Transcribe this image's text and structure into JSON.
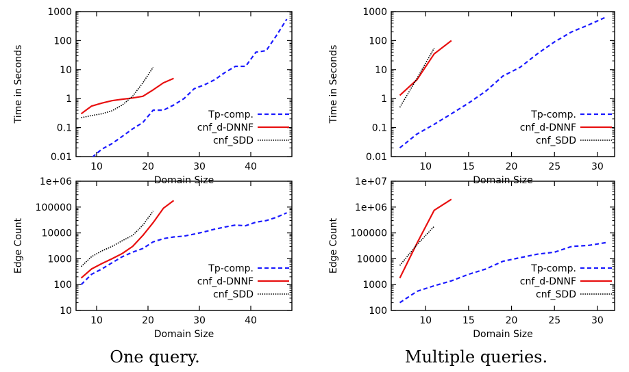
{
  "captions": {
    "left": "One query.",
    "right": "Multiple queries."
  },
  "colors": {
    "tp": "#1a1aff",
    "dnnf": "#e81010",
    "sdd": "#000000"
  },
  "chart_data": [
    {
      "id": "tl",
      "type": "line",
      "xlabel": "Domain Size",
      "ylabel": "Time in Seconds",
      "xlim": [
        6,
        48
      ],
      "ylim": [
        0.01,
        1000
      ],
      "log_y": true,
      "x_ticks": [
        10,
        20,
        30,
        40
      ],
      "x_tick_labels": [
        "10",
        "20",
        "30",
        "40"
      ],
      "y_ticks": [
        0.01,
        0.1,
        1,
        10,
        100,
        1000
      ],
      "y_tick_labels": [
        "0.01",
        "0.1",
        "1",
        "10",
        "100",
        "1000"
      ],
      "legend_position": "bottom-right",
      "series": [
        {
          "name": "Tp-comp.",
          "style": "dashed",
          "color": "#1a1aff",
          "x": [
            7,
            9,
            11,
            13,
            15,
            17,
            19,
            21,
            23,
            25,
            27,
            29,
            31,
            33,
            35,
            37,
            39,
            41,
            43,
            45,
            47
          ],
          "y": [
            0.005,
            0.009,
            0.018,
            0.028,
            0.05,
            0.09,
            0.15,
            0.4,
            0.4,
            0.6,
            1,
            2.2,
            3,
            4.5,
            8,
            13,
            13,
            40,
            45,
            150,
            550
          ]
        },
        {
          "name": "cnf_d-DNNF",
          "style": "solid",
          "color": "#e81010",
          "x": [
            7,
            9,
            11,
            13,
            15,
            17,
            19,
            21,
            23,
            25
          ],
          "y": [
            0.3,
            0.55,
            0.7,
            0.85,
            0.95,
            1.05,
            1.2,
            2,
            3.5,
            5
          ]
        },
        {
          "name": "cnf_SDD",
          "style": "dotted",
          "color": "#000000",
          "x": [
            7,
            9,
            11,
            13,
            15,
            17,
            19,
            21
          ],
          "y": [
            0.22,
            0.26,
            0.3,
            0.38,
            0.6,
            1.2,
            3.5,
            12
          ]
        }
      ]
    },
    {
      "id": "tr",
      "type": "line",
      "xlabel": "Domain Size",
      "ylabel": "Time in Seconds",
      "xlim": [
        6,
        32
      ],
      "ylim": [
        0.01,
        1000
      ],
      "log_y": true,
      "x_ticks": [
        10,
        15,
        20,
        25,
        30
      ],
      "x_tick_labels": [
        "10",
        "15",
        "20",
        "25",
        "30"
      ],
      "y_ticks": [
        0.01,
        0.1,
        1,
        10,
        100,
        1000
      ],
      "y_tick_labels": [
        "0.01",
        "0.1",
        "1",
        "10",
        "100",
        "1000"
      ],
      "legend_position": "bottom-right",
      "series": [
        {
          "name": "Tp-comp.",
          "style": "dashed",
          "color": "#1a1aff",
          "x": [
            7,
            9,
            11,
            13,
            15,
            17,
            19,
            21,
            23,
            25,
            27,
            29,
            31
          ],
          "y": [
            0.02,
            0.06,
            0.13,
            0.3,
            0.7,
            1.8,
            6,
            12,
            35,
            90,
            200,
            350,
            650
          ]
        },
        {
          "name": "cnf_d-DNNF",
          "style": "solid",
          "color": "#e81010",
          "x": [
            7,
            9,
            11,
            13
          ],
          "y": [
            1.3,
            4.5,
            35,
            100
          ]
        },
        {
          "name": "cnf_SDD",
          "style": "dotted",
          "color": "#000000",
          "x": [
            7,
            9,
            11
          ],
          "y": [
            0.5,
            5,
            55
          ]
        }
      ]
    },
    {
      "id": "bl",
      "type": "line",
      "xlabel": "Domain Size",
      "ylabel": "Edge Count",
      "xlim": [
        6,
        48
      ],
      "ylim": [
        10,
        1000000
      ],
      "log_y": true,
      "x_ticks": [
        10,
        20,
        30,
        40
      ],
      "x_tick_labels": [
        "10",
        "20",
        "30",
        "40"
      ],
      "y_ticks": [
        10,
        100,
        1000,
        10000,
        100000,
        1000000
      ],
      "y_tick_labels": [
        "10",
        "100",
        "1000",
        "10000",
        "100000",
        "1e+06"
      ],
      "legend_position": "bottom-right",
      "series": [
        {
          "name": "Tp-comp.",
          "style": "dashed",
          "color": "#1a1aff",
          "x": [
            7,
            9,
            11,
            13,
            15,
            17,
            19,
            21,
            23,
            25,
            27,
            29,
            31,
            33,
            35,
            37,
            39,
            41,
            43,
            45,
            47
          ],
          "y": [
            100,
            250,
            400,
            700,
            1200,
            1800,
            2500,
            4500,
            6000,
            7000,
            7500,
            9000,
            11000,
            14000,
            17000,
            20000,
            19000,
            26000,
            30000,
            40000,
            60000
          ]
        },
        {
          "name": "cnf_d-DNNF",
          "style": "solid",
          "color": "#e81010",
          "x": [
            7,
            9,
            11,
            13,
            15,
            17,
            19,
            21,
            23,
            25
          ],
          "y": [
            180,
            400,
            650,
            1000,
            1600,
            3000,
            8000,
            25000,
            90000,
            180000
          ]
        },
        {
          "name": "cnf_SDD",
          "style": "dotted",
          "color": "#000000",
          "x": [
            7,
            9,
            11,
            13,
            15,
            17,
            19,
            21
          ],
          "y": [
            500,
            1200,
            2000,
            3000,
            5000,
            8000,
            20000,
            70000
          ]
        }
      ]
    },
    {
      "id": "br",
      "type": "line",
      "xlabel": "Domain Size",
      "ylabel": "Edge Count",
      "xlim": [
        6,
        32
      ],
      "ylim": [
        100,
        10000000
      ],
      "log_y": true,
      "x_ticks": [
        10,
        15,
        20,
        25,
        30
      ],
      "x_tick_labels": [
        "10",
        "15",
        "20",
        "25",
        "30"
      ],
      "y_ticks": [
        100,
        1000,
        10000,
        100000,
        1000000,
        10000000
      ],
      "y_tick_labels": [
        "100",
        "1000",
        "10000",
        "100000",
        "1e+06",
        "1e+07"
      ],
      "legend_position": "bottom-right",
      "series": [
        {
          "name": "Tp-comp.",
          "style": "dashed",
          "color": "#1a1aff",
          "x": [
            7,
            9,
            11,
            13,
            15,
            17,
            19,
            21,
            23,
            25,
            27,
            29,
            31
          ],
          "y": [
            200,
            550,
            900,
            1400,
            2500,
            4000,
            8000,
            11000,
            15000,
            18000,
            30000,
            33000,
            42000
          ]
        },
        {
          "name": "cnf_d-DNNF",
          "style": "solid",
          "color": "#e81010",
          "x": [
            7,
            9,
            11,
            13
          ],
          "y": [
            1800,
            40000,
            750000,
            2000000
          ]
        },
        {
          "name": "cnf_SDD",
          "style": "dotted",
          "color": "#000000",
          "x": [
            7,
            9,
            11
          ],
          "y": [
            5500,
            35000,
            180000
          ]
        }
      ]
    }
  ]
}
